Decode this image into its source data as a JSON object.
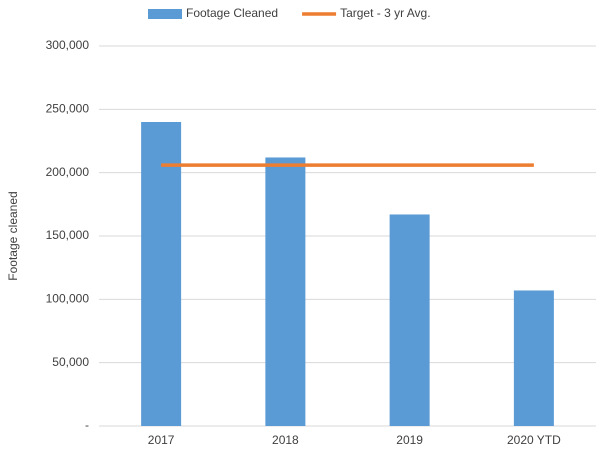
{
  "chart_data": {
    "type": "bar",
    "y_axis_label": "Footage cleaned",
    "categories": [
      "2017",
      "2018",
      "2019",
      "2020 YTD"
    ],
    "series": [
      {
        "name": "Footage Cleaned",
        "type": "bar",
        "color": "#5b9bd5",
        "values": [
          240000,
          212000,
          167000,
          107000
        ]
      },
      {
        "name": "Target - 3 yr Avg.",
        "type": "line",
        "color": "#ed7d31",
        "values": [
          206000,
          206000,
          206000,
          206000
        ]
      }
    ],
    "ylim": [
      0,
      300000
    ],
    "yticks": [
      {
        "value": 0,
        "label": "-"
      },
      {
        "value": 50000,
        "label": "50,000"
      },
      {
        "value": 100000,
        "label": "100,000"
      },
      {
        "value": 150000,
        "label": "150,000"
      },
      {
        "value": 200000,
        "label": "200,000"
      },
      {
        "value": 250000,
        "label": "250,000"
      },
      {
        "value": 300000,
        "label": "300,000"
      }
    ],
    "grid": true,
    "legend": "top"
  }
}
